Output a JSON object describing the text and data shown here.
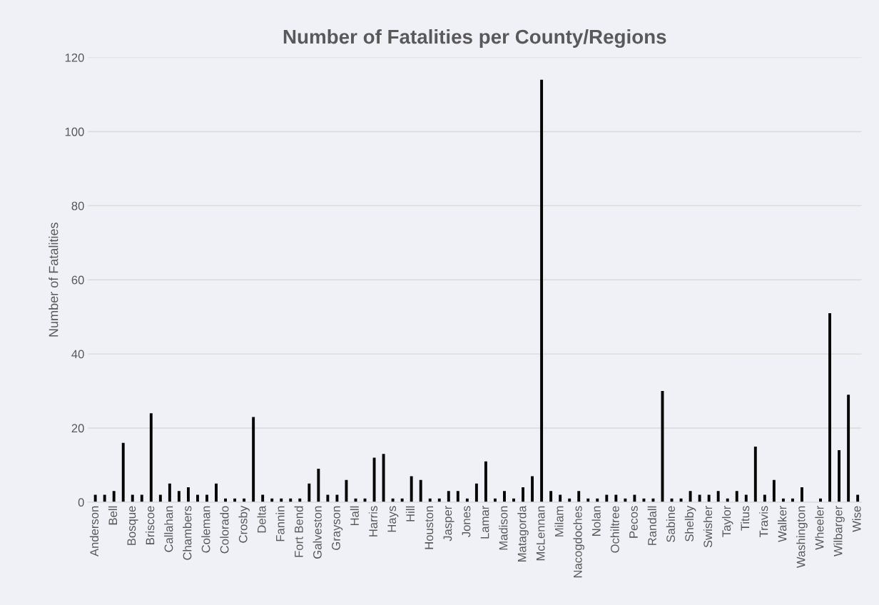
{
  "chart_data": {
    "type": "bar",
    "title": "Number of Fatalities per County/Regions",
    "ylabel": "Number of Fatalities",
    "categories": [
      "Anderson",
      null,
      "Bell",
      null,
      "Bosque",
      null,
      "Briscoe",
      null,
      "Callahan",
      null,
      "Chambers",
      null,
      "Coleman",
      null,
      "Colorado",
      null,
      "Crosby",
      null,
      "Delta",
      null,
      "Fannin",
      null,
      "Fort Bend",
      null,
      "Galveston",
      null,
      "Grayson",
      null,
      "Hall",
      null,
      "Harris",
      null,
      "Hays",
      null,
      "Hill",
      null,
      "Houston",
      null,
      "Jasper",
      null,
      "Jones",
      null,
      "Lamar",
      null,
      "Madison",
      null,
      "Matagorda",
      null,
      "McLennan",
      null,
      "Milam",
      null,
      "Nacogdoches",
      null,
      "Nolan",
      null,
      "Ochiltree",
      null,
      "Pecos",
      null,
      "Randall",
      null,
      "Sabine",
      null,
      "Shelby",
      null,
      "Swisher",
      null,
      "Taylor",
      null,
      "Titus",
      null,
      "Travis",
      null,
      "Walker",
      null,
      "Washington",
      null,
      "Wheeler",
      null,
      "Wilbarger",
      null,
      "Wise"
    ],
    "values": [
      2,
      2,
      3,
      16,
      2,
      2,
      24,
      2,
      5,
      3,
      4,
      2,
      2,
      5,
      1,
      1,
      1,
      23,
      2,
      1,
      1,
      1,
      1,
      5,
      9,
      2,
      2,
      6,
      1,
      1,
      12,
      13,
      1,
      1,
      7,
      6,
      1,
      1,
      3,
      3,
      1,
      5,
      11,
      1,
      3,
      1,
      4,
      7,
      114,
      3,
      2,
      1,
      3,
      1,
      1,
      2,
      2,
      1,
      2,
      1,
      1,
      30,
      1,
      1,
      3,
      2,
      2,
      3,
      1,
      3,
      2,
      15,
      2,
      6,
      1,
      1,
      4,
      0,
      1,
      51,
      14,
      29,
      2
    ],
    "color": "#000000",
    "ylim": [
      0,
      120
    ],
    "yticks": [
      0,
      20,
      40,
      60,
      80,
      100,
      120
    ],
    "grid": "y"
  }
}
